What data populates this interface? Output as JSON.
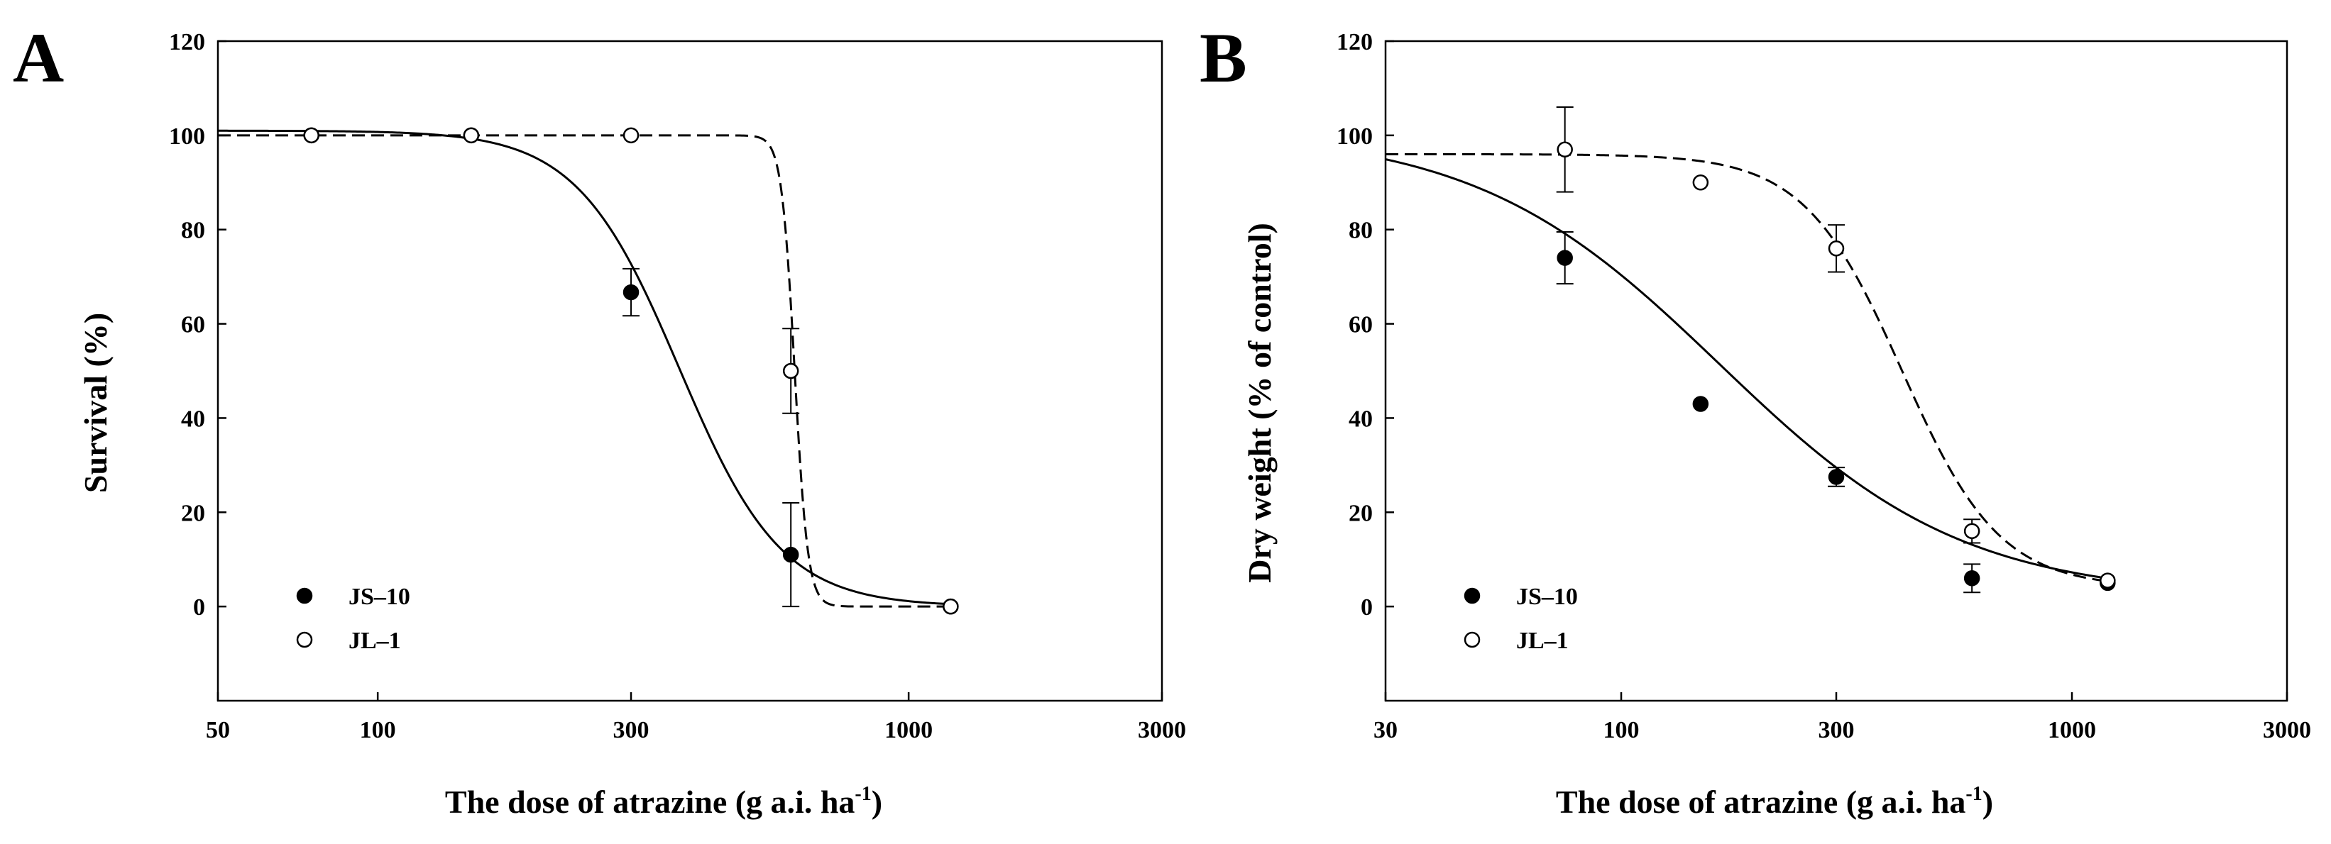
{
  "chart_data": [
    {
      "type": "scatter",
      "panel_label": "A",
      "title": "",
      "xlabel": "The dose of atrazine (g a.i. ha",
      "xlabel_sup": "-1",
      "xlabel_end": ")",
      "ylabel": "Survival (%)",
      "xscale": "log",
      "xlim": [
        50,
        3000
      ],
      "ylim": [
        -20,
        120
      ],
      "xticks": [
        50,
        100,
        300,
        1000,
        3000
      ],
      "xtick_labels": [
        "50",
        "100",
        "300",
        "1000",
        "3000"
      ],
      "yticks": [
        0,
        20,
        40,
        60,
        80,
        100,
        120
      ],
      "ytick_labels": [
        "0",
        "20",
        "40",
        "60",
        "80",
        "100",
        "120"
      ],
      "legend_position": "lower-left",
      "series": [
        {
          "name": "JS–10",
          "marker": "filled-circle",
          "line": "solid",
          "x": [
            75,
            150,
            300,
            600,
            1200
          ],
          "y": [
            100,
            100,
            66.7,
            11,
            0
          ],
          "err": [
            0,
            0,
            5,
            11,
            0
          ],
          "fit": {
            "model": "log-logistic",
            "top": 101,
            "bottom": 0,
            "ed50": 370,
            "slope": 4.5
          }
        },
        {
          "name": "JL–1",
          "marker": "open-circle",
          "line": "dashed",
          "x": [
            75,
            150,
            300,
            600,
            1200
          ],
          "y": [
            100,
            100,
            100,
            50,
            0
          ],
          "err": [
            0,
            0,
            0,
            9,
            0
          ],
          "fit": {
            "model": "log-logistic",
            "top": 100,
            "bottom": 0,
            "ed50": 610,
            "slope": 35
          }
        }
      ]
    },
    {
      "type": "scatter",
      "panel_label": "B",
      "title": "",
      "xlabel": "The dose of atrazine (g a.i. ha",
      "xlabel_sup": "-1",
      "xlabel_end": ")",
      "ylabel": "Dry weight (% of control)",
      "xscale": "log",
      "xlim": [
        30,
        3000
      ],
      "ylim": [
        -20,
        120
      ],
      "xticks": [
        30,
        100,
        300,
        1000,
        3000
      ],
      "xtick_labels": [
        "30",
        "100",
        "300",
        "1000",
        "3000"
      ],
      "yticks": [
        0,
        20,
        40,
        60,
        80,
        100,
        120
      ],
      "ytick_labels": [
        "0",
        "20",
        "40",
        "60",
        "80",
        "100",
        "120"
      ],
      "legend_position": "lower-left",
      "series": [
        {
          "name": "JS–10",
          "marker": "filled-circle",
          "line": "solid",
          "x": [
            75,
            150,
            300,
            600,
            1200
          ],
          "y": [
            74,
            43,
            27.5,
            6,
            5
          ],
          "err": [
            5.5,
            0,
            2,
            3,
            0
          ],
          "fit": {
            "model": "log-logistic",
            "top": 101,
            "bottom": 2,
            "ed50": 165,
            "slope": 1.6
          }
        },
        {
          "name": "JL–1",
          "marker": "open-circle",
          "line": "dashed",
          "x": [
            75,
            150,
            300,
            600,
            1200
          ],
          "y": [
            97,
            90,
            76,
            16,
            5.5
          ],
          "err": [
            9,
            0,
            5,
            2.5,
            0
          ],
          "fit": {
            "model": "log-logistic",
            "top": 96,
            "bottom": 4,
            "ed50": 420,
            "slope": 4
          }
        }
      ]
    }
  ]
}
